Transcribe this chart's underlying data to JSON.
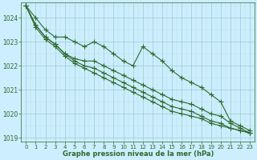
{
  "xlabel": "Graphe pression niveau de la mer (hPa)",
  "x": [
    0,
    1,
    2,
    3,
    4,
    5,
    6,
    7,
    8,
    9,
    10,
    11,
    12,
    13,
    14,
    15,
    16,
    17,
    18,
    19,
    20,
    21,
    22,
    23
  ],
  "lines": [
    [
      1024.5,
      1024.0,
      1023.5,
      1023.2,
      1023.2,
      1023.0,
      1022.8,
      1023.0,
      1022.8,
      1022.5,
      1022.2,
      1022.0,
      1022.8,
      1022.5,
      1022.2,
      1021.8,
      1021.5,
      1021.3,
      1021.1,
      1020.8,
      1020.5,
      1019.7,
      1019.5,
      1019.3
    ],
    [
      1024.5,
      1023.7,
      1023.2,
      1022.9,
      1022.5,
      1022.3,
      1022.2,
      1022.2,
      1022.0,
      1021.8,
      1021.6,
      1021.4,
      1021.2,
      1021.0,
      1020.8,
      1020.6,
      1020.5,
      1020.4,
      1020.2,
      1020.0,
      1019.9,
      1019.6,
      1019.4,
      1019.2
    ],
    [
      1024.5,
      1023.7,
      1023.2,
      1022.9,
      1022.5,
      1022.2,
      1022.0,
      1021.9,
      1021.7,
      1021.5,
      1021.3,
      1021.1,
      1020.9,
      1020.7,
      1020.5,
      1020.3,
      1020.2,
      1020.1,
      1019.9,
      1019.7,
      1019.6,
      1019.4,
      1019.3,
      1019.2
    ],
    [
      1024.5,
      1023.6,
      1023.1,
      1022.8,
      1022.4,
      1022.1,
      1021.9,
      1021.7,
      1021.5,
      1021.3,
      1021.1,
      1020.9,
      1020.7,
      1020.5,
      1020.3,
      1020.1,
      1020.0,
      1019.9,
      1019.8,
      1019.6,
      1019.5,
      1019.4,
      1019.3,
      1019.2
    ]
  ],
  "line_color": "#2d6a2d",
  "marker": "+",
  "markersize": 4,
  "linewidth": 0.8,
  "bg_color": "#cceeff",
  "grid_major_color": "#99cccc",
  "grid_minor_color": "#bbdddd",
  "tick_color": "#2d6a2d",
  "label_color": "#2d6a2d",
  "ylim": [
    1018.85,
    1024.65
  ],
  "yticks": [
    1019,
    1020,
    1021,
    1022,
    1023,
    1024
  ],
  "xticks": [
    0,
    1,
    2,
    3,
    4,
    5,
    6,
    7,
    8,
    9,
    10,
    11,
    12,
    13,
    14,
    15,
    16,
    17,
    18,
    19,
    20,
    21,
    22,
    23
  ]
}
